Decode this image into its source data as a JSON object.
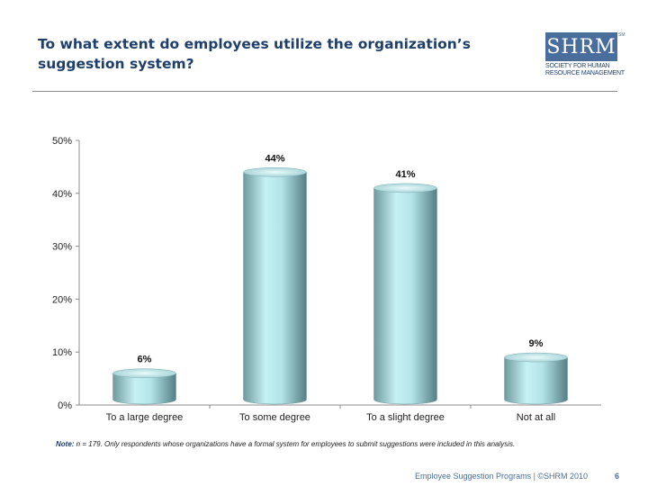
{
  "slide": {
    "title": "To what extent do employees utilize the organization’s suggestion system?",
    "note_label": "Note:",
    "note_text": " n = 179. Only respondents whose organizations have a formal system for employees to submit suggestions were included in this analysis.",
    "footer": "Employee Suggestion Programs | ©SHRM 2010",
    "page_number": "6"
  },
  "logo": {
    "mark": "SHRM",
    "tm": "SM",
    "line1": "SOCIETY FOR HUMAN",
    "line2": "RESOURCE MANAGEMENT",
    "color": "#4a6e9c"
  },
  "chart_data": {
    "type": "bar",
    "categories": [
      "To a large degree",
      "To some degree",
      "To a slight degree",
      "Not at all"
    ],
    "values": [
      6,
      44,
      41,
      9
    ],
    "data_labels": [
      "6%",
      "44%",
      "41%",
      "9%"
    ],
    "ylim": [
      0,
      50
    ],
    "y_ticks": [
      0,
      10,
      20,
      30,
      40,
      50
    ],
    "y_tick_labels": [
      "0%",
      "10%",
      "20%",
      "30%",
      "40%",
      "50%"
    ],
    "bar_style": "3d-cylinder",
    "bar_color": "#a9d9de",
    "grid": false,
    "legend": "none"
  }
}
